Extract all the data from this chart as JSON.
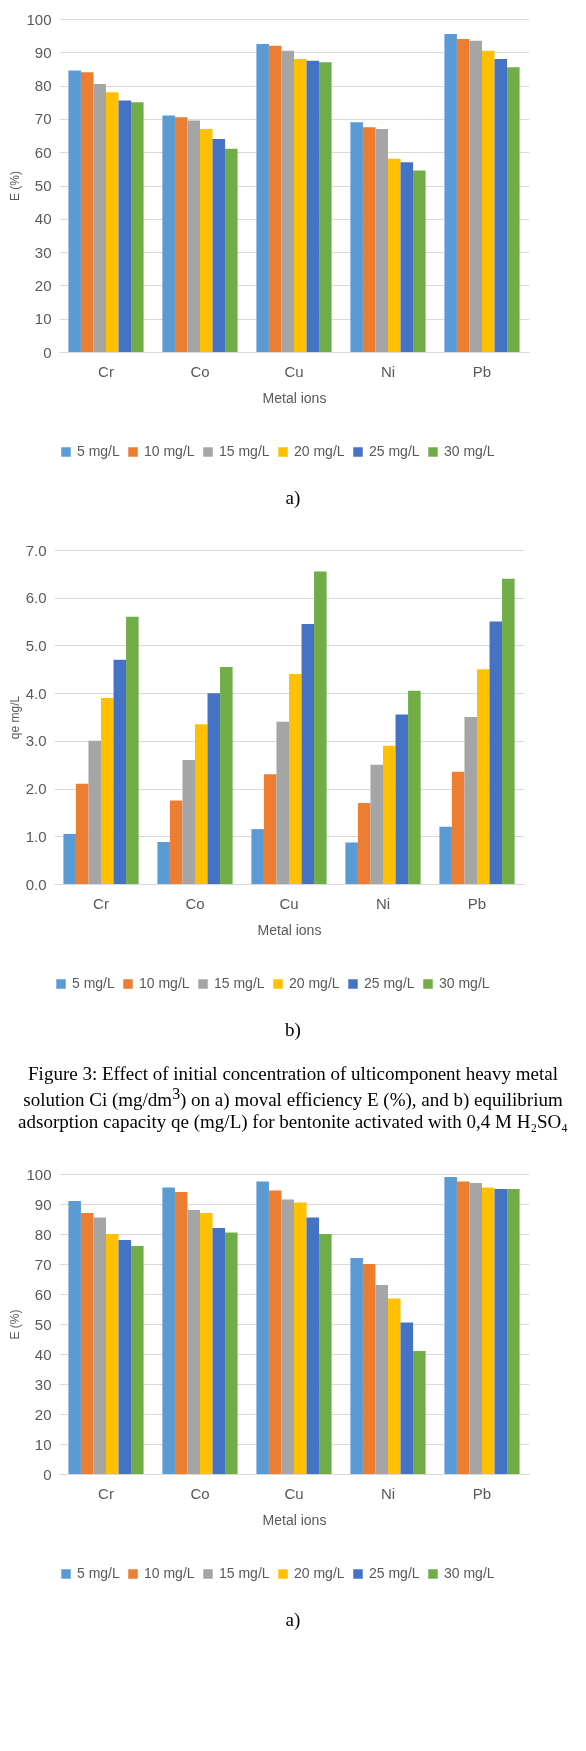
{
  "chart_data": [
    {
      "type": "bar",
      "xlabel": "Metal ions",
      "ylabel": "E (%)",
      "categories": [
        "Cr",
        "Co",
        "Cu",
        "Ni",
        "Pb"
      ],
      "ylim": [
        0,
        100
      ],
      "yticks": [
        0,
        10,
        20,
        30,
        40,
        50,
        60,
        70,
        80,
        90,
        100
      ],
      "grid": "y",
      "legend": "bottom",
      "annotations": [
        "a)"
      ],
      "series": [
        {
          "name": "5 mg/L",
          "color": "#5b9bd5",
          "values": [
            84.5,
            71,
            92.5,
            69,
            95.5
          ]
        },
        {
          "name": "10 mg/L",
          "color": "#ed7d31",
          "values": [
            84,
            70.5,
            92,
            67.5,
            94
          ]
        },
        {
          "name": "15 mg/L",
          "color": "#a5a5a5",
          "values": [
            80.5,
            69.5,
            90.5,
            67,
            93.5
          ]
        },
        {
          "name": "20 mg/L",
          "color": "#ffc000",
          "values": [
            78,
            67,
            88,
            58,
            90.5
          ]
        },
        {
          "name": "25 mg/L",
          "color": "#4472c4",
          "values": [
            75.5,
            64,
            87.5,
            57,
            88
          ]
        },
        {
          "name": "30 mg/L",
          "color": "#70ad47",
          "values": [
            75,
            61,
            87,
            54.5,
            85.5
          ]
        }
      ]
    },
    {
      "type": "bar",
      "xlabel": "Metal ions",
      "ylabel": "qe mg/L",
      "categories": [
        "Cr",
        "Co",
        "Cu",
        "Ni",
        "Pb"
      ],
      "ylim": [
        0,
        7
      ],
      "yticks": [
        {
          "value": 0,
          "label": "0.0"
        },
        {
          "value": 1,
          "label": "1.0"
        },
        {
          "value": 2,
          "label": "2.0"
        },
        {
          "value": 3,
          "label": "3.0"
        },
        {
          "value": 4,
          "label": "4.0"
        },
        {
          "value": 5,
          "label": "5.0"
        },
        {
          "value": 6,
          "label": "6.0"
        },
        {
          "value": 7,
          "label": "7.0"
        }
      ],
      "grid": "y",
      "legend": "bottom",
      "annotations": [
        "b)",
        "Figure 3: Effect of initial concentration of ulticomponent heavy metal solution Ci (mg/dm$^{3}$) on a) moval efficiency E (%), and b) equilibrium adsorption capacity qe (mg/L) for bentonite activated with 0,4 M H₂SO₄"
      ],
      "series": [
        {
          "name": "5 mg/L",
          "color": "#5b9bd5",
          "values": [
            1.05,
            0.88,
            1.15,
            0.87,
            1.2
          ]
        },
        {
          "name": "10 mg/L",
          "color": "#ed7d31",
          "values": [
            2.1,
            1.75,
            2.3,
            1.7,
            2.35
          ]
        },
        {
          "name": "15 mg/L",
          "color": "#a5a5a5",
          "values": [
            3.0,
            2.6,
            3.4,
            2.5,
            3.5
          ]
        },
        {
          "name": "20 mg/L",
          "color": "#ffc000",
          "values": [
            3.9,
            3.35,
            4.4,
            2.9,
            4.5
          ]
        },
        {
          "name": "25 mg/L",
          "color": "#4472c4",
          "values": [
            4.7,
            4.0,
            5.45,
            3.55,
            5.5
          ]
        },
        {
          "name": "30 mg/L",
          "color": "#70ad47",
          "values": [
            5.6,
            4.55,
            6.55,
            4.05,
            6.4
          ]
        }
      ]
    },
    {
      "type": "bar",
      "xlabel": "Metal ions",
      "ylabel": "E (%)",
      "categories": [
        "Cr",
        "Co",
        "Cu",
        "Ni",
        "Pb"
      ],
      "ylim": [
        0,
        100
      ],
      "yticks": [
        0,
        10,
        20,
        30,
        40,
        50,
        60,
        70,
        80,
        90,
        100
      ],
      "grid": "y",
      "legend": "bottom",
      "annotations": [
        "a)"
      ],
      "series": [
        {
          "name": "5 mg/L",
          "color": "#5b9bd5",
          "values": [
            91,
            95.5,
            97.5,
            72,
            99
          ]
        },
        {
          "name": "10 mg/L",
          "color": "#ed7d31",
          "values": [
            87,
            94,
            94.5,
            70,
            97.5
          ]
        },
        {
          "name": "15 mg/L",
          "color": "#a5a5a5",
          "values": [
            85.5,
            88,
            91.5,
            63,
            97
          ]
        },
        {
          "name": "20 mg/L",
          "color": "#ffc000",
          "values": [
            80,
            87,
            90.5,
            58.5,
            95.5
          ]
        },
        {
          "name": "25 mg/L",
          "color": "#4472c4",
          "values": [
            78,
            82,
            85.5,
            50.5,
            95
          ]
        },
        {
          "name": "30 mg/L",
          "color": "#70ad47",
          "values": [
            76,
            80.5,
            80,
            41,
            95
          ]
        }
      ]
    }
  ]
}
